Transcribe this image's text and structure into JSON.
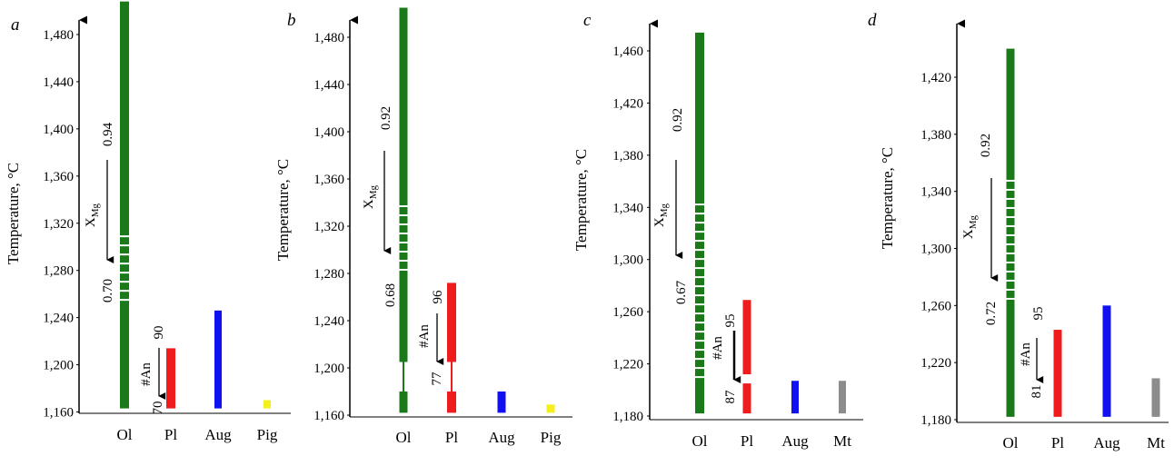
{
  "figure": {
    "colors": {
      "Ol": "#1a7a1a",
      "Pl": "#ee1c1c",
      "Aug": "#1010f0",
      "Pig": "#f5ef1e",
      "Mt": "#8c8c8c"
    }
  },
  "chart_data": [
    {
      "type": "bar",
      "panel": "a",
      "ylabel": "Temperature, °C",
      "yticks": [
        1160,
        1200,
        1240,
        1280,
        1320,
        1360,
        1400,
        1440,
        1480
      ],
      "ytick_labels": [
        "1,160",
        "1,200",
        "1,240",
        "1,280",
        "1,320",
        "1,360",
        "1,400",
        "1,440",
        "1,480"
      ],
      "categories": [
        "Ol",
        "Pl",
        "Aug",
        "Pig"
      ],
      "bars": [
        {
          "mineral": "Ol",
          "segments": [
            {
              "from": 1163,
              "to": 1508
            }
          ],
          "dashed": [
            {
              "from": 1250,
              "to": 1312
            }
          ]
        },
        {
          "mineral": "Pl",
          "segments": [
            {
              "from": 1163,
              "to": 1214
            }
          ]
        },
        {
          "mineral": "Aug",
          "segments": [
            {
              "from": 1163,
              "to": 1246
            }
          ]
        },
        {
          "mineral": "Pig",
          "segments": [
            {
              "from": 1163,
              "to": 1170
            }
          ]
        }
      ],
      "annotations": {
        "xmg_label": "X",
        "xmg_sub": "Mg",
        "xmg_start": "0.94",
        "xmg_end": "0.70",
        "an_label": "#An",
        "an_start": "90",
        "an_end": "70"
      }
    },
    {
      "type": "bar",
      "panel": "b",
      "ylabel": "Temperature, °C",
      "yticks": [
        1160,
        1200,
        1240,
        1280,
        1320,
        1360,
        1400,
        1440,
        1480
      ],
      "ytick_labels": [
        "1,160",
        "1,200",
        "1,240",
        "1,280",
        "1,320",
        "1,360",
        "1,400",
        "1,440",
        "1,480"
      ],
      "categories": [
        "Ol",
        "Pl",
        "Aug",
        "Pig"
      ],
      "bars": [
        {
          "mineral": "Ol",
          "segments": [
            {
              "from": 1162,
              "to": 1180
            },
            {
              "from": 1205,
              "to": 1505
            }
          ],
          "connectors": [
            {
              "from": 1180,
              "to": 1205
            }
          ],
          "dashed": [
            {
              "from": 1280,
              "to": 1340
            }
          ]
        },
        {
          "mineral": "Pl",
          "segments": [
            {
              "from": 1162,
              "to": 1180
            },
            {
              "from": 1205,
              "to": 1272
            }
          ],
          "connectors": [
            {
              "from": 1180,
              "to": 1205
            }
          ]
        },
        {
          "mineral": "Aug",
          "segments": [
            {
              "from": 1162,
              "to": 1180
            }
          ]
        },
        {
          "mineral": "Pig",
          "segments": [
            {
              "from": 1162,
              "to": 1169
            }
          ]
        }
      ],
      "annotations": {
        "xmg_label": "X",
        "xmg_sub": "Mg",
        "xmg_start": "0.92",
        "xmg_end": "0.68",
        "an_label": "#An",
        "an_start": "96",
        "an_end": "77"
      }
    },
    {
      "type": "bar",
      "panel": "c",
      "ylabel": "Temperature, °C",
      "yticks": [
        1180,
        1220,
        1260,
        1300,
        1340,
        1380,
        1420,
        1460
      ],
      "ytick_labels": [
        "1,180",
        "1,220",
        "1,260",
        "1,300",
        "1,340",
        "1,380",
        "1,420",
        "1,460"
      ],
      "categories": [
        "Ol",
        "Pl",
        "Aug",
        "Mt"
      ],
      "bars": [
        {
          "mineral": "Ol",
          "segments": [
            {
              "from": 1182,
              "to": 1474
            }
          ],
          "dashed": [
            {
              "from": 1205,
              "to": 1345
            }
          ]
        },
        {
          "mineral": "Pl",
          "segments": [
            {
              "from": 1182,
              "to": 1205
            },
            {
              "from": 1212,
              "to": 1269
            }
          ]
        },
        {
          "mineral": "Aug",
          "segments": [
            {
              "from": 1182,
              "to": 1207
            }
          ]
        },
        {
          "mineral": "Mt",
          "segments": [
            {
              "from": 1182,
              "to": 1207
            }
          ]
        }
      ],
      "annotations": {
        "xmg_label": "X",
        "xmg_sub": "Mg",
        "xmg_start": "0.92",
        "xmg_end": "0.67",
        "an_label": "#An",
        "an_start": "95",
        "an_end": "87"
      }
    },
    {
      "type": "bar",
      "panel": "d",
      "ylabel": "Temperature, °C",
      "yticks": [
        1180,
        1220,
        1260,
        1300,
        1340,
        1380,
        1420
      ],
      "ytick_labels": [
        "1,180",
        "1,220",
        "1,260",
        "1,300",
        "1,340",
        "1,380",
        "1,420"
      ],
      "categories": [
        "Ol",
        "Pl",
        "Aug",
        "Mt"
      ],
      "bars": [
        {
          "mineral": "Ol",
          "segments": [
            {
              "from": 1182,
              "to": 1440
            }
          ],
          "dashed": [
            {
              "from": 1265,
              "to": 1350
            }
          ]
        },
        {
          "mineral": "Pl",
          "segments": [
            {
              "from": 1182,
              "to": 1243
            }
          ]
        },
        {
          "mineral": "Aug",
          "segments": [
            {
              "from": 1182,
              "to": 1260
            }
          ]
        },
        {
          "mineral": "Mt",
          "segments": [
            {
              "from": 1182,
              "to": 1209
            }
          ]
        }
      ],
      "annotations": {
        "xmg_label": "X",
        "xmg_sub": "Mg",
        "xmg_start": "0.92",
        "xmg_end": "0.72",
        "an_label": "#An",
        "an_start": "95",
        "an_end": "81"
      }
    }
  ]
}
